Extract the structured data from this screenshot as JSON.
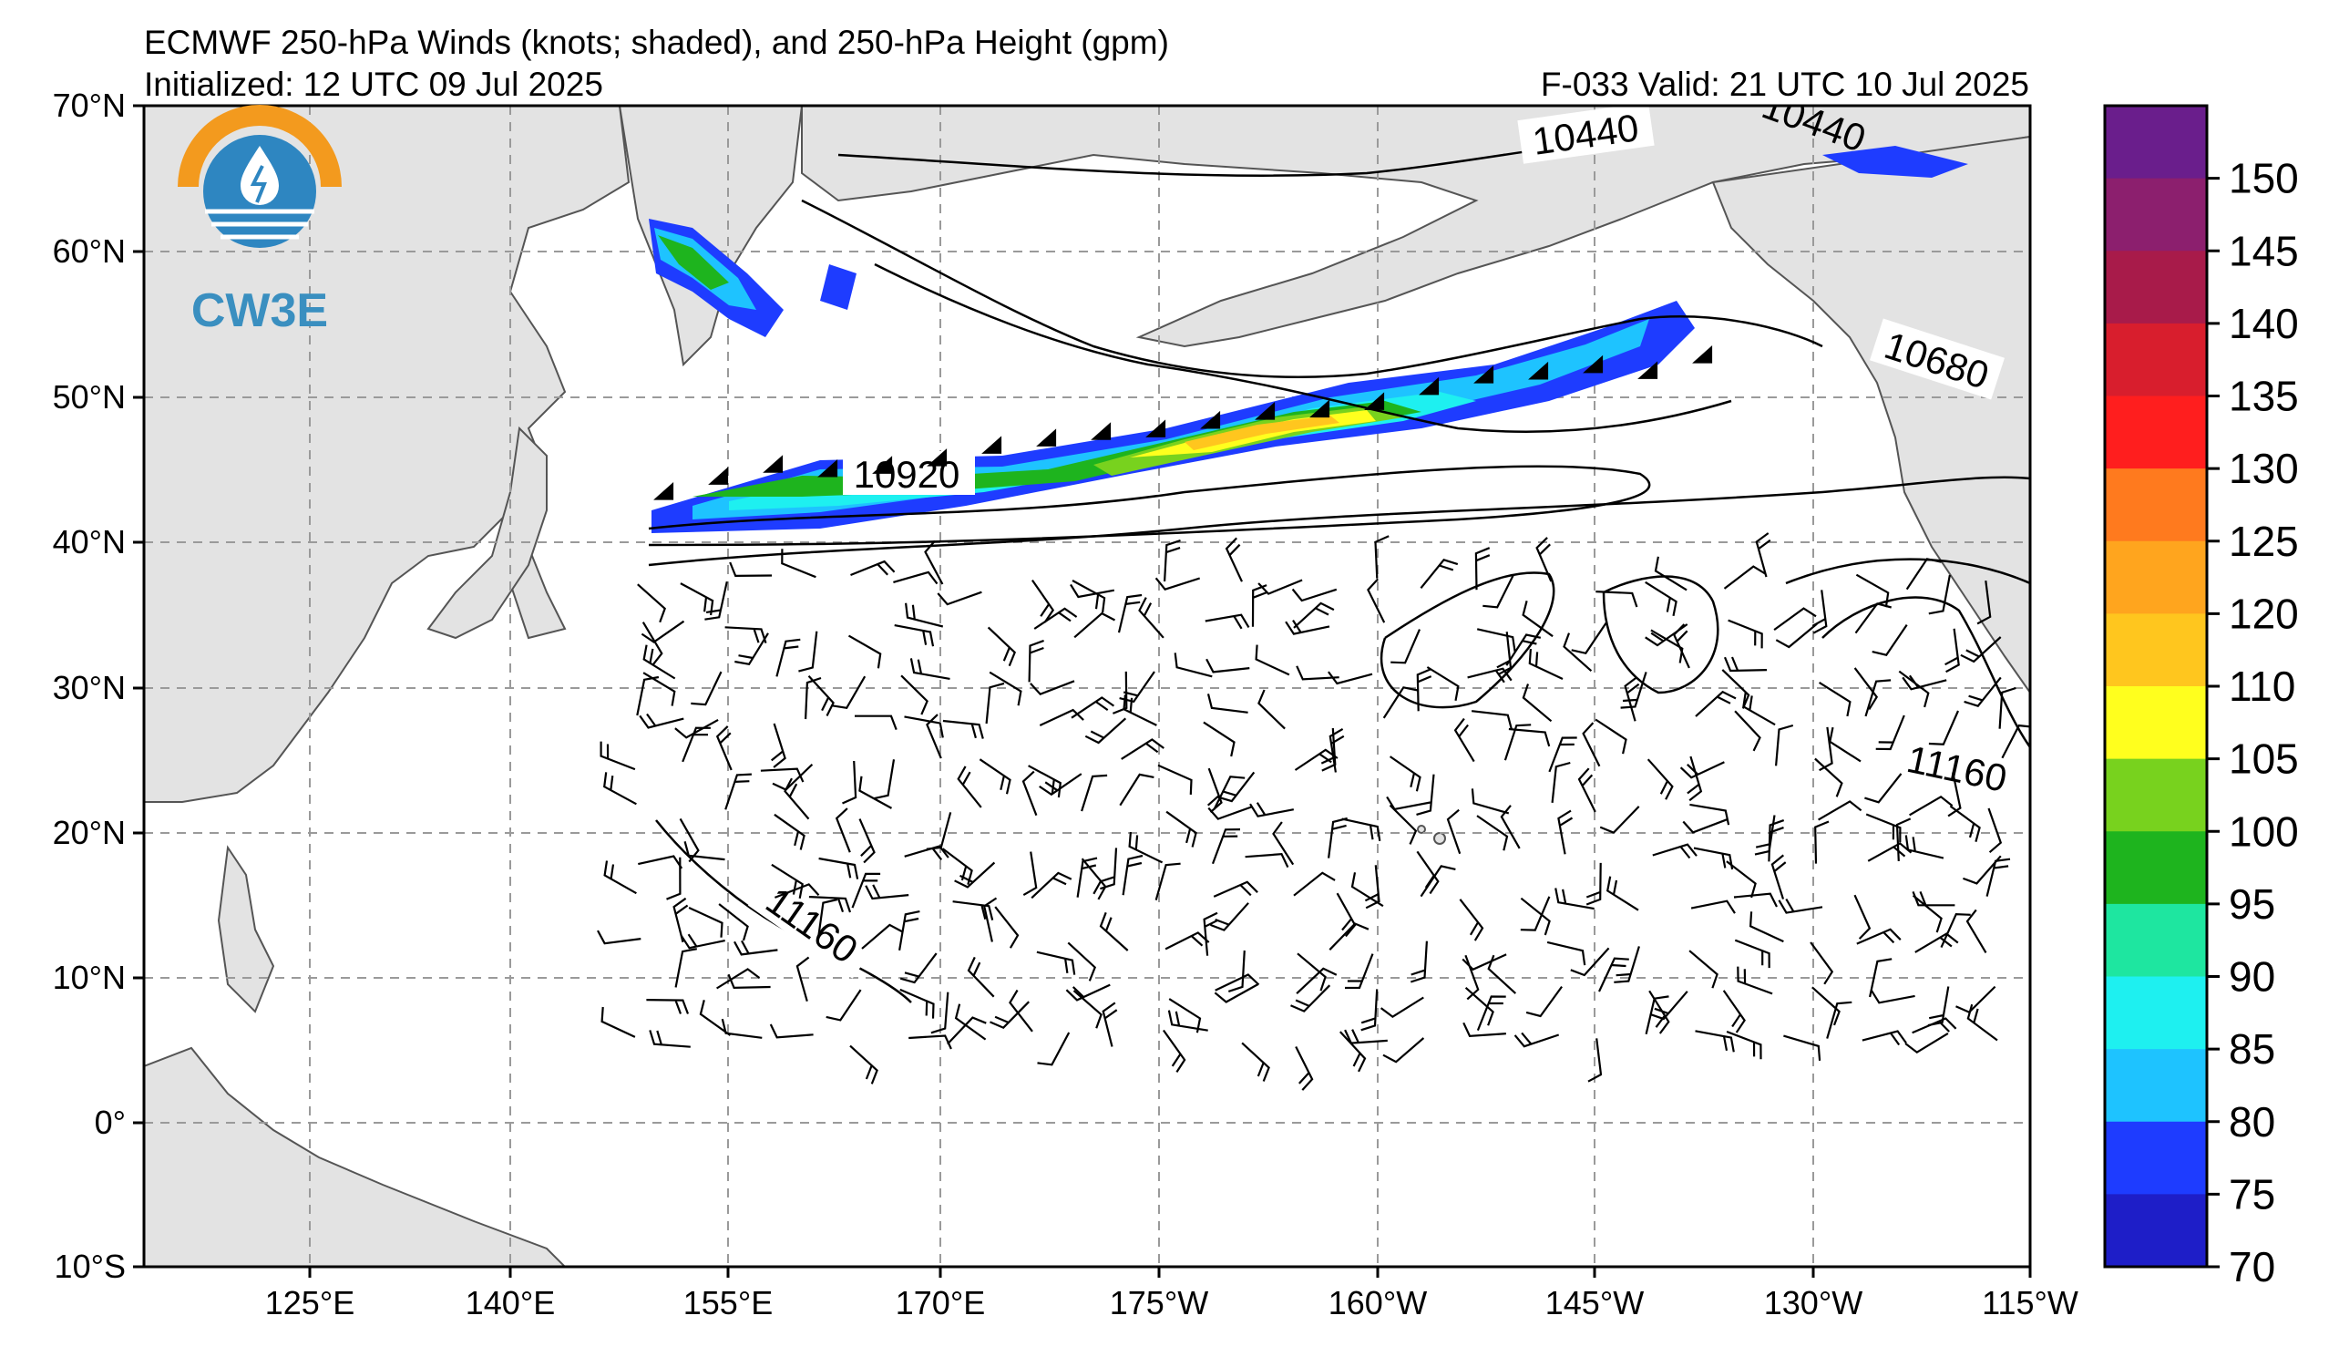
{
  "header": {
    "title": "ECMWF 250-hPa Winds (knots; shaded), and 250-hPa Height (gpm)",
    "initialized": "Initialized: 12 UTC 09 Jul 2025",
    "valid": "F-033  Valid: 21 UTC 10 Jul 2025"
  },
  "logo": {
    "text": "CW3E"
  },
  "map": {
    "lat_labels": [
      "70°N",
      "60°N",
      "50°N",
      "40°N",
      "30°N",
      "20°N",
      "10°N",
      "0°",
      "10°S"
    ],
    "lon_labels": [
      "125°E",
      "140°E",
      "155°E",
      "170°E",
      "175°W",
      "160°W",
      "145°W",
      "130°W",
      "115°W"
    ],
    "contour_labels": [
      "10920",
      "10440",
      "10680",
      "11160",
      "11160",
      "10440"
    ],
    "land_color": "#e3e3e3",
    "grid_color": "#9a9a9a"
  },
  "colorbar": {
    "units": "knots",
    "ticks": [
      "150",
      "145",
      "140",
      "135",
      "130",
      "125",
      "120",
      "110",
      "105",
      "100",
      "95",
      "90",
      "85",
      "80",
      "75",
      "70"
    ],
    "colors": [
      "#6a1e8c",
      "#8c1f6e",
      "#a81b4a",
      "#d81e2d",
      "#ff1e1e",
      "#ff7a1e",
      "#ffa51e",
      "#ffc61e",
      "#ffff1e",
      "#78d21e",
      "#1eb41e",
      "#1ee6a0",
      "#1ef0f0",
      "#1ec3ff",
      "#1e3cff",
      "#1e1ec8"
    ]
  }
}
